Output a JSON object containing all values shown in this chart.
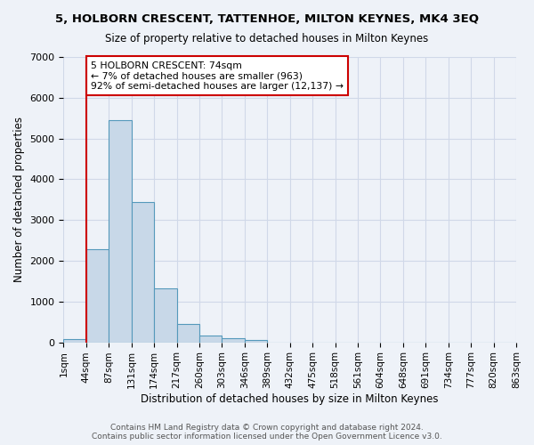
{
  "title_line1": "5, HOLBORN CRESCENT, TATTENHOE, MILTON KEYNES, MK4 3EQ",
  "title_line2": "Size of property relative to detached houses in Milton Keynes",
  "xlabel": "Distribution of detached houses by size in Milton Keynes",
  "ylabel": "Number of detached properties",
  "bin_labels": [
    "1sqm",
    "44sqm",
    "87sqm",
    "131sqm",
    "174sqm",
    "217sqm",
    "260sqm",
    "303sqm",
    "346sqm",
    "389sqm",
    "432sqm",
    "475sqm",
    "518sqm",
    "561sqm",
    "604sqm",
    "648sqm",
    "691sqm",
    "734sqm",
    "777sqm",
    "820sqm",
    "863sqm"
  ],
  "bar_values": [
    80,
    2280,
    5450,
    3450,
    1320,
    460,
    165,
    90,
    55,
    0,
    0,
    0,
    0,
    0,
    0,
    0,
    0,
    0,
    0,
    0
  ],
  "bar_color": "#c8d8e8",
  "bar_edge_color": "#5599bb",
  "vline_x": 1,
  "vline_color": "#cc0000",
  "annotation_text": "5 HOLBORN CRESCENT: 74sqm\n← 7% of detached houses are smaller (963)\n92% of semi-detached houses are larger (12,137) →",
  "annotation_box_color": "#ffffff",
  "annotation_box_edge": "#cc0000",
  "ylim": [
    0,
    7000
  ],
  "yticks": [
    0,
    1000,
    2000,
    3000,
    4000,
    5000,
    6000,
    7000
  ],
  "grid_color": "#d0d8e8",
  "background_color": "#eef2f8",
  "footer_text": "Contains HM Land Registry data © Crown copyright and database right 2024.\nContains public sector information licensed under the Open Government Licence v3.0."
}
